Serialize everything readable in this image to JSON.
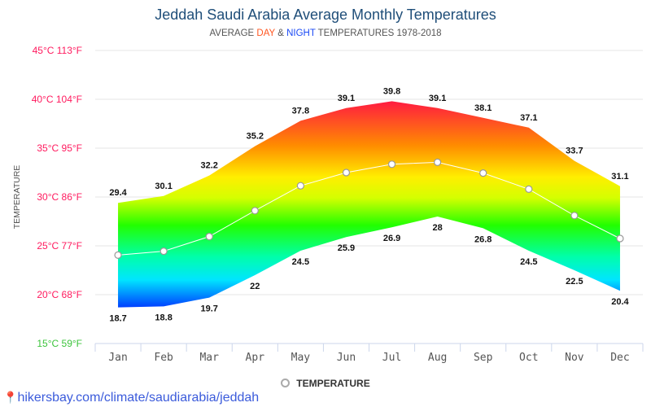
{
  "title": "Jeddah Saudi Arabia Average Monthly Temperatures",
  "subtitle": {
    "prefix": "AVERAGE ",
    "day": "DAY",
    "amp": " & ",
    "night": "NIGHT",
    "suffix": " TEMPERATURES 1978-2018"
  },
  "legend": {
    "label": "TEMPERATURE"
  },
  "source": "hikersbay.com/climate/saudiarabia/jeddah",
  "colors": {
    "title": "#1f4e79",
    "day": "#ff5722",
    "night": "#1a49f5",
    "axis_label_hot": "#ff1a5e",
    "axis_label_cool": "#3cc43c"
  },
  "chart_data": {
    "type": "area",
    "ylabel": "TEMPERATURE",
    "ylim": [
      15,
      45
    ],
    "grid": true,
    "legend_position": "bottom",
    "yticks": [
      {
        "c": 45,
        "label": "45°C 113°F"
      },
      {
        "c": 40,
        "label": "40°C 104°F"
      },
      {
        "c": 35,
        "label": "35°C 95°F"
      },
      {
        "c": 30,
        "label": "30°C 86°F"
      },
      {
        "c": 25,
        "label": "25°C 77°F"
      },
      {
        "c": 20,
        "label": "20°C 68°F"
      },
      {
        "c": 15,
        "label": "15°C 59°F"
      }
    ],
    "categories": [
      "Jan",
      "Feb",
      "Mar",
      "Apr",
      "May",
      "Jun",
      "Jul",
      "Aug",
      "Sep",
      "Oct",
      "Nov",
      "Dec"
    ],
    "series": [
      {
        "name": "day",
        "values": [
          29.4,
          30.1,
          32.2,
          35.2,
          37.8,
          39.1,
          39.8,
          39.1,
          38.1,
          37.1,
          33.7,
          31.1
        ]
      },
      {
        "name": "night",
        "values": [
          18.7,
          18.8,
          19.7,
          22,
          24.5,
          25.9,
          26.9,
          28,
          26.8,
          24.5,
          22.5,
          20.4
        ]
      },
      {
        "name": "TEMPERATURE",
        "values": [
          24.05,
          24.45,
          25.95,
          28.6,
          31.15,
          32.5,
          33.35,
          33.55,
          32.45,
          30.8,
          28.1,
          25.75
        ]
      }
    ]
  }
}
